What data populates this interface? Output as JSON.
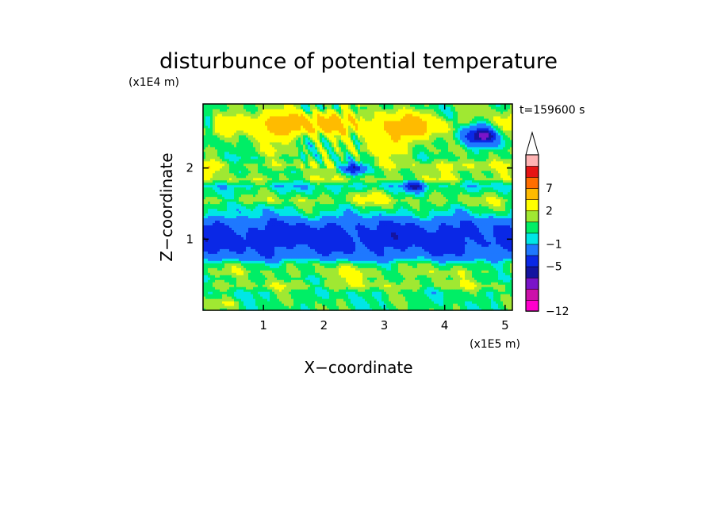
{
  "chart_data": {
    "type": "heatmap",
    "title": "disturbunce of potential temperature",
    "xlabel": "X−coordinate",
    "ylabel": "Z−coordinate",
    "x_scale_label": "(x1E5 m)",
    "y_scale_label": "(x1E4 m)",
    "time_label": "t=159600 s",
    "xlim": [
      0,
      5.12
    ],
    "ylim": [
      0,
      2.9
    ],
    "x_ticks": [
      {
        "value": 1,
        "label": "1"
      },
      {
        "value": 2,
        "label": "2"
      },
      {
        "value": 3,
        "label": "3"
      },
      {
        "value": 4,
        "label": "4"
      },
      {
        "value": 5,
        "label": "5"
      }
    ],
    "y_ticks": [
      {
        "value": 1,
        "label": "1"
      },
      {
        "value": 2,
        "label": "2"
      }
    ],
    "colorbar": {
      "levels": [
        -12,
        -11,
        -9,
        -7,
        -5,
        -3,
        -1,
        0,
        1,
        2,
        4,
        7,
        9,
        12
      ],
      "tick_labels": [
        {
          "value": -12,
          "label": "−12"
        },
        {
          "value": -5,
          "label": "−5"
        },
        {
          "value": -1,
          "label": "−1"
        },
        {
          "value": 2,
          "label": "2"
        },
        {
          "value": 7,
          "label": "7"
        }
      ],
      "colors": [
        "#ff00cc",
        "#cc11aa",
        "#7a14c8",
        "#1414a0",
        "#0a28e6",
        "#1e78ff",
        "#00e6e6",
        "#00ee66",
        "#a0e832",
        "#ffff00",
        "#ffbb00",
        "#ff6e00",
        "#e61414",
        "#ffb4b4"
      ],
      "extend": "max"
    },
    "layers": [
      {
        "z": 0.05,
        "value": 0.5
      },
      {
        "z": 0.15,
        "value": 0.5
      },
      {
        "z": 0.25,
        "value": 0.3
      },
      {
        "z": 0.35,
        "value": 1.5
      },
      {
        "z": 0.45,
        "value": 0.6
      },
      {
        "z": 0.55,
        "value": 1.2
      },
      {
        "z": 0.65,
        "value": 0.5
      },
      {
        "z": 0.75,
        "value": -2.0
      },
      {
        "z": 0.85,
        "value": -3.0
      },
      {
        "z": 0.95,
        "value": -4.0
      },
      {
        "z": 1.05,
        "value": -4.0
      },
      {
        "z": 1.15,
        "value": -3.5
      },
      {
        "z": 1.25,
        "value": -2.5
      },
      {
        "z": 1.35,
        "value": -0.5
      },
      {
        "z": 1.45,
        "value": 0.5
      },
      {
        "z": 1.55,
        "value": 1.5
      },
      {
        "z": 1.65,
        "value": 0.5
      },
      {
        "z": 1.75,
        "value": -0.5
      },
      {
        "z": 1.85,
        "value": 1.5
      },
      {
        "z": 1.95,
        "value": 0.8
      },
      {
        "z": 2.05,
        "value": 1.5
      },
      {
        "z": 2.15,
        "value": 0.5
      },
      {
        "z": 2.25,
        "value": 1.0
      },
      {
        "z": 2.35,
        "value": 0.5
      },
      {
        "z": 2.45,
        "value": 1.0
      },
      {
        "z": 2.55,
        "value": 2.5
      },
      {
        "z": 2.65,
        "value": 3.0
      },
      {
        "z": 2.75,
        "value": 2.0
      },
      {
        "z": 2.85,
        "value": 1.0
      }
    ],
    "anomalies": [
      {
        "x": 0.1,
        "z": 2.65,
        "rx": 0.12,
        "rz": 0.13,
        "amp": -3.5
      },
      {
        "x": 0.1,
        "z": 2.0,
        "rx": 0.1,
        "rz": 0.1,
        "amp": 2.5
      },
      {
        "x": 1.3,
        "z": 2.55,
        "rx": 0.45,
        "rz": 0.22,
        "amp": 3.0
      },
      {
        "x": 2.1,
        "z": 2.65,
        "rx": 0.3,
        "rz": 0.15,
        "amp": 2.5
      },
      {
        "x": 3.1,
        "z": 2.4,
        "rx": 0.45,
        "rz": 0.2,
        "amp": 3.0
      },
      {
        "x": 3.55,
        "z": 2.6,
        "rx": 0.25,
        "rz": 0.2,
        "amp": 2.5
      },
      {
        "x": 2.5,
        "z": 2.0,
        "rx": 0.22,
        "rz": 0.07,
        "amp": -5.0
      },
      {
        "x": 3.5,
        "z": 1.75,
        "rx": 0.15,
        "rz": 0.07,
        "amp": -5.0
      },
      {
        "x": 4.55,
        "z": 2.5,
        "rx": 0.35,
        "rz": 0.18,
        "amp": -5.5
      },
      {
        "x": 4.65,
        "z": 2.45,
        "rx": 0.15,
        "rz": 0.08,
        "amp": -4.0
      },
      {
        "x": 4.3,
        "z": 2.0,
        "rx": 0.5,
        "rz": 0.12,
        "amp": 1.2
      },
      {
        "x": 2.5,
        "z": 0.5,
        "rx": 0.45,
        "rz": 0.12,
        "amp": 1.2
      },
      {
        "x": 3.8,
        "z": 0.45,
        "rx": 0.35,
        "rz": 0.1,
        "amp": 0.8
      },
      {
        "x": 0.4,
        "z": 0.1,
        "rx": 0.3,
        "rz": 0.05,
        "amp": 1.2
      },
      {
        "x": 4.8,
        "z": 1.1,
        "rx": 0.3,
        "rz": 0.2,
        "amp": 0.8
      },
      {
        "x": 2.7,
        "z": 1.6,
        "rx": 0.4,
        "rz": 0.1,
        "amp": 1.0
      },
      {
        "x": 0.9,
        "z": 1.45,
        "rx": 0.5,
        "rz": 0.08,
        "amp": -0.8
      },
      {
        "x": 4.1,
        "z": 2.75,
        "rx": 0.2,
        "rz": 0.12,
        "amp": -1.5
      }
    ]
  }
}
